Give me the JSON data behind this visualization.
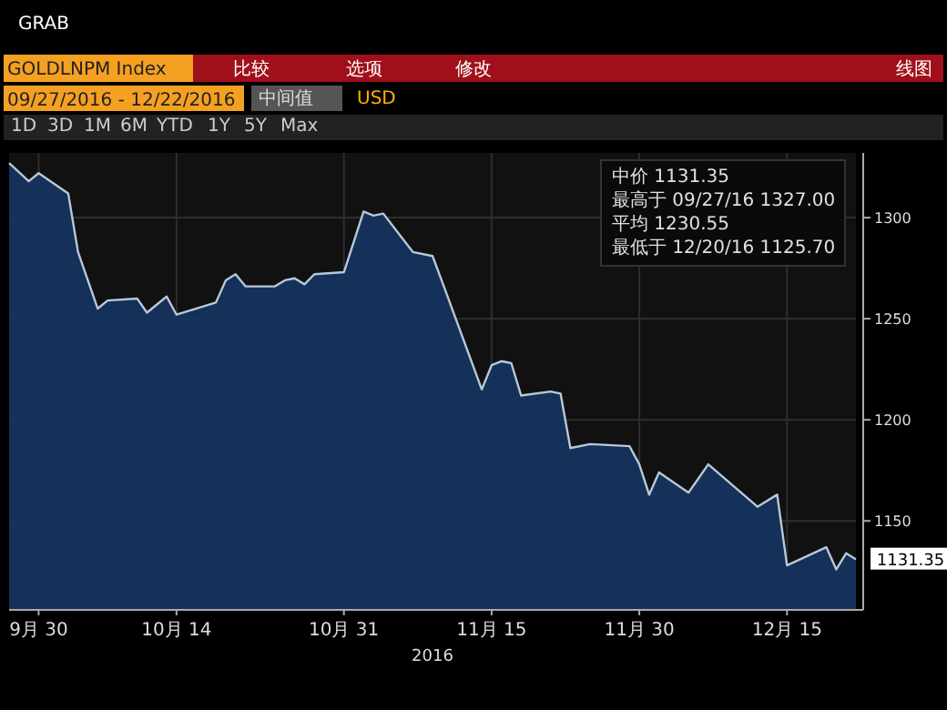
{
  "chart_data": {
    "type": "area",
    "title": "GOLDLNPM Index",
    "subtitle": "09/27/2016 - 12/22/2016",
    "xlabel": "2016",
    "x": [
      "2016-09-27",
      "2016-09-29",
      "2016-09-30",
      "2016-10-03",
      "2016-10-04",
      "2016-10-06",
      "2016-10-07",
      "2016-10-10",
      "2016-10-11",
      "2016-10-13",
      "2016-10-14",
      "2016-10-18",
      "2016-10-19",
      "2016-10-20",
      "2016-10-21",
      "2016-10-24",
      "2016-10-25",
      "2016-10-26",
      "2016-10-27",
      "2016-10-28",
      "2016-10-31",
      "2016-11-02",
      "2016-11-03",
      "2016-11-04",
      "2016-11-07",
      "2016-11-09",
      "2016-11-10",
      "2016-11-14",
      "2016-11-15",
      "2016-11-16",
      "2016-11-17",
      "2016-11-18",
      "2016-11-21",
      "2016-11-22",
      "2016-11-23",
      "2016-11-25",
      "2016-11-29",
      "2016-11-30",
      "2016-12-01",
      "2016-12-02",
      "2016-12-05",
      "2016-12-07",
      "2016-12-12",
      "2016-12-14",
      "2016-12-15",
      "2016-12-19",
      "2016-12-20",
      "2016-12-21",
      "2016-12-22"
    ],
    "series": [
      {
        "color": "#16335e",
        "values": [
          1327,
          1318,
          1322,
          1312,
          1283,
          1255,
          1259,
          1260,
          1253,
          1261,
          1252,
          1258,
          1269,
          1272,
          1266,
          1266,
          1269,
          1270,
          1267,
          1272,
          1273,
          1303,
          1301,
          1302,
          1283,
          1281,
          1268,
          1215,
          1227,
          1229,
          1228,
          1212,
          1214,
          1213,
          1186,
          1188,
          1187,
          1178,
          1163,
          1174,
          1164,
          1178,
          1157,
          1163,
          1128,
          1137,
          1126,
          1134,
          1131
        ]
      }
    ],
    "xlim": [
      "2016-09-27",
      "2016-12-22"
    ],
    "xticks": [
      {
        "value": "2016-09-30",
        "label": "9月 30"
      },
      {
        "value": "2016-10-14",
        "label": "10月 14"
      },
      {
        "value": "2016-10-31",
        "label": "10月 31"
      },
      {
        "value": "2016-11-15",
        "label": "11月 15"
      },
      {
        "value": "2016-11-30",
        "label": "11月 30"
      },
      {
        "value": "2016-12-15",
        "label": "12月 15"
      }
    ],
    "ylim": [
      1106,
      1332
    ],
    "yticks": [
      1150,
      1200,
      1250,
      1300
    ],
    "grid": true,
    "annotations": [
      "GRAB",
      "比较",
      "选项",
      "修改",
      "线图",
      "中间值",
      "USD",
      "1D",
      "3D",
      "1M",
      "6M",
      "YTD",
      "1Y",
      "5Y",
      "Max",
      "中价 1131.35",
      "最高于 09/27/16 1327.00",
      "平均 1230.55",
      "最低于 12/20/16 1125.70",
      {
        "text": "1131.35",
        "x": "2016-12-22",
        "y": 1131.35
      }
    ]
  }
}
